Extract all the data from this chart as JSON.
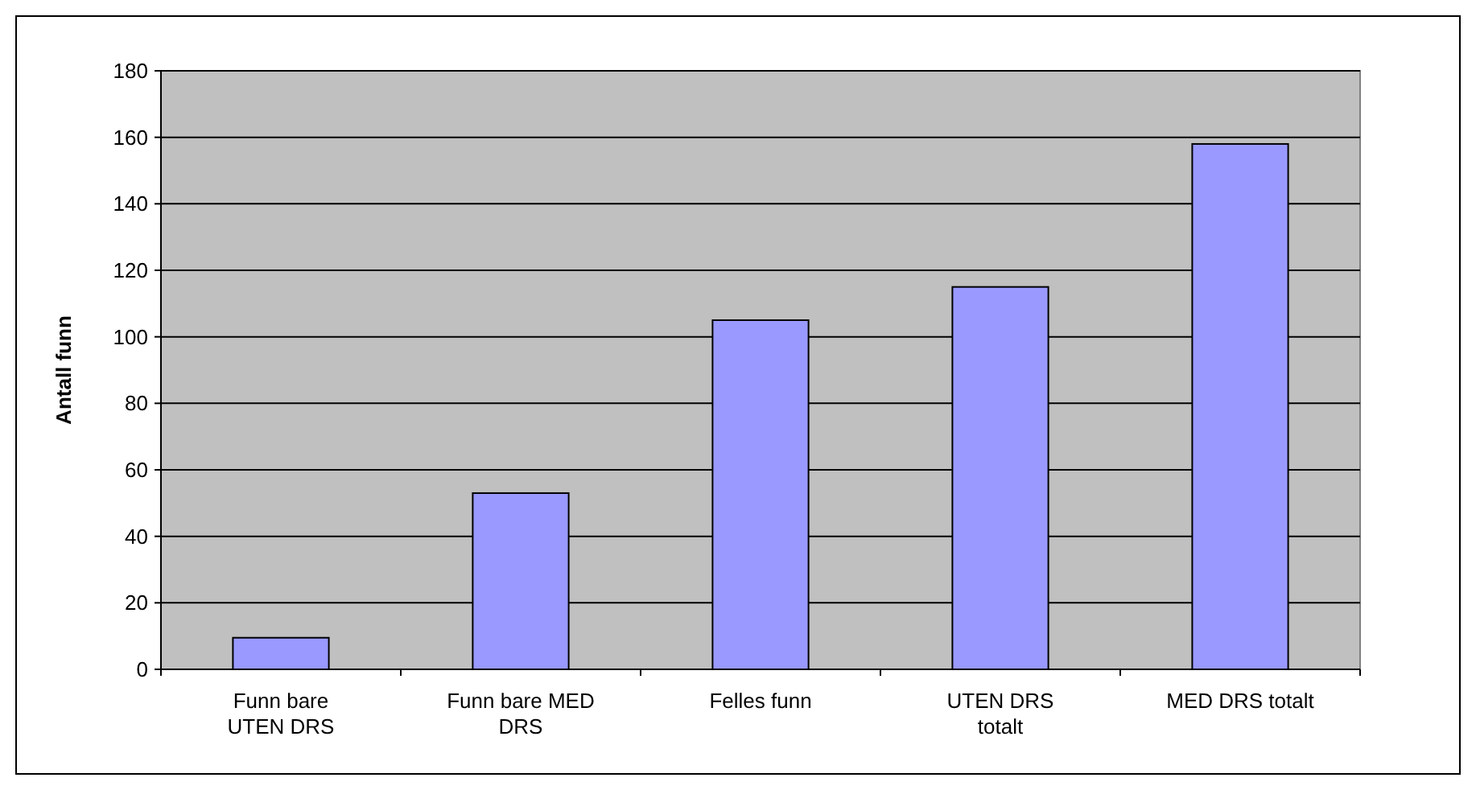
{
  "chart_data": {
    "type": "bar",
    "ylabel": "Antall funn",
    "categories": [
      "Funn bare UTEN DRS",
      "Funn bare MED DRS",
      "Felles funn",
      "UTEN DRS totalt",
      "MED DRS totalt"
    ],
    "values": [
      9.5,
      53,
      105,
      115,
      158
    ],
    "color": "#9999ff",
    "ylim": [
      0,
      180
    ],
    "yticks": [
      0,
      20,
      40,
      60,
      80,
      100,
      120,
      140,
      160,
      180
    ],
    "grid": "y"
  }
}
